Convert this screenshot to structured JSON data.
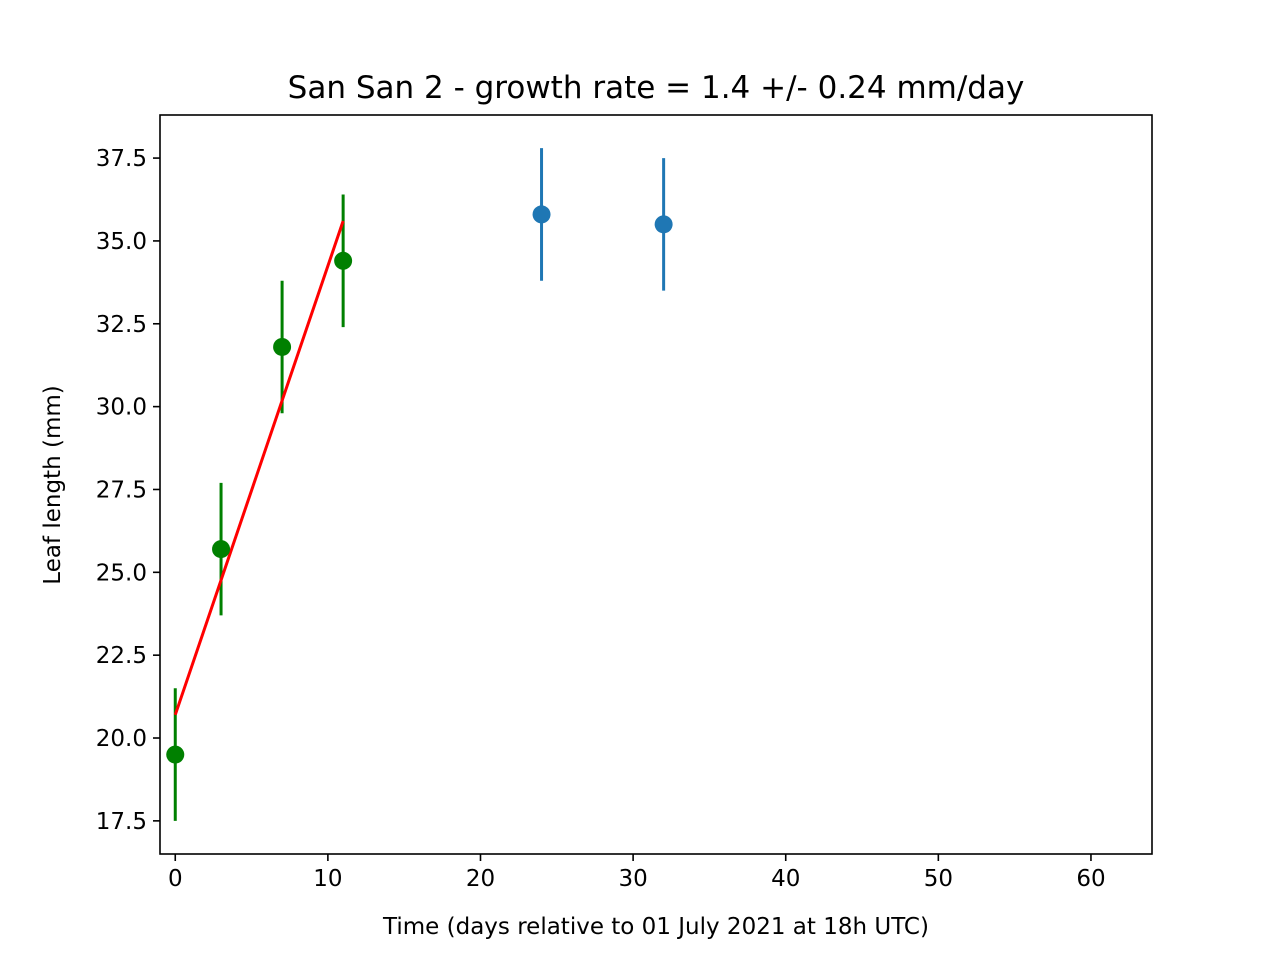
{
  "chart_data": {
    "type": "scatter",
    "title": "San San 2  -  growth rate =  1.4 +/- 0.24 mm/day",
    "xlabel": "Time (days relative to 01 July 2021 at 18h UTC)",
    "ylabel": "Leaf length (mm)",
    "xlim": [
      -1,
      64
    ],
    "ylim": [
      16.5,
      38.8
    ],
    "xticks": [
      0,
      10,
      20,
      30,
      40,
      50,
      60
    ],
    "xtick_labels": [
      "0",
      "10",
      "20",
      "30",
      "40",
      "50",
      "60"
    ],
    "yticks": [
      17.5,
      20.0,
      22.5,
      25.0,
      27.5,
      30.0,
      32.5,
      35.0,
      37.5
    ],
    "ytick_labels": [
      "17.5",
      "20.0",
      "22.5",
      "25.0",
      "27.5",
      "30.0",
      "32.5",
      "35.0",
      "37.5"
    ],
    "grid": false,
    "series": [
      {
        "color": "#008000",
        "x": [
          0,
          3,
          7,
          11
        ],
        "y": [
          19.5,
          25.7,
          31.8,
          34.4
        ],
        "yerr": [
          2.0,
          2.0,
          2.0,
          2.0
        ]
      },
      {
        "color": "#1f77b4",
        "x": [
          24,
          32
        ],
        "y": [
          35.8,
          35.5
        ],
        "yerr": [
          2.0,
          2.0
        ]
      }
    ],
    "fit_line": {
      "color": "#ff0000",
      "x": [
        0,
        11
      ],
      "y": [
        20.7,
        35.6
      ]
    }
  }
}
